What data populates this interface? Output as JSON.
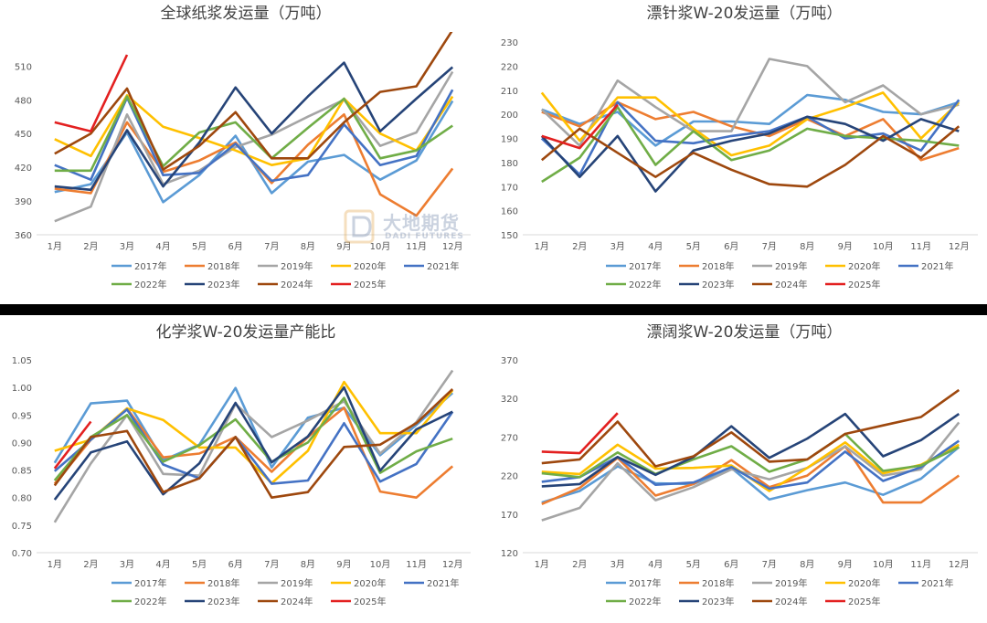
{
  "months": [
    "1月",
    "2月",
    "3月",
    "4月",
    "5月",
    "6月",
    "7月",
    "8月",
    "9月",
    "10月",
    "11月",
    "12月"
  ],
  "series_names": [
    "2017年",
    "2018年",
    "2019年",
    "2020年",
    "2021年",
    "2022年",
    "2023年",
    "2024年",
    "2025年"
  ],
  "series_colors": [
    "#5b9bd5",
    "#ed7d31",
    "#a5a5a5",
    "#ffc000",
    "#4472c4",
    "#70ad47",
    "#264478",
    "#9e480e",
    "#e32020"
  ],
  "watermark": {
    "cn": "大地期货",
    "en": "DADI FUTURES",
    "color": "#3b5b99"
  },
  "chart_data": [
    {
      "type": "line",
      "title": "全球纸浆发运量（万吨）",
      "ylim": [
        360,
        520
      ],
      "yticks": [
        "360",
        "390",
        "420",
        "450",
        "480",
        "510"
      ],
      "ytick_values": [
        360,
        390,
        420,
        450,
        480,
        510
      ],
      "x": [
        "1月",
        "2月",
        "3月",
        "4月",
        "5月",
        "6月",
        "7月",
        "8月",
        "9月",
        "10月",
        "11月",
        "12月"
      ],
      "series": [
        {
          "name": "2017年",
          "values": [
            398,
            405,
            451,
            389,
            413,
            448,
            397,
            425,
            431,
            409,
            426,
            479
          ]
        },
        {
          "name": "2018年",
          "values": [
            401,
            397,
            460,
            416,
            426,
            442,
            406,
            440,
            467,
            396,
            377,
            419
          ]
        },
        {
          "name": "2019年",
          "values": [
            372,
            385,
            467,
            405,
            417,
            438,
            449,
            465,
            480,
            439,
            451,
            505
          ]
        },
        {
          "name": "2020年",
          "values": [
            445,
            430,
            484,
            456,
            446,
            435,
            422,
            428,
            481,
            450,
            435,
            483
          ]
        },
        {
          "name": "2021年",
          "values": [
            422,
            409,
            482,
            413,
            415,
            441,
            408,
            413,
            458,
            422,
            430,
            489
          ]
        },
        {
          "name": "2022年",
          "values": [
            417,
            417,
            483,
            421,
            451,
            460,
            428,
            455,
            481,
            428,
            435,
            457
          ]
        },
        {
          "name": "2023年",
          "values": [
            403,
            400,
            453,
            403,
            442,
            491,
            450,
            483,
            513,
            452,
            481,
            509
          ]
        },
        {
          "name": "2024年",
          "values": [
            432,
            450,
            490,
            418,
            439,
            469,
            428,
            428,
            460,
            487,
            492,
            542
          ]
        },
        {
          "name": "2025年",
          "values": [
            460,
            452,
            520,
            null,
            null,
            null,
            null,
            null,
            null,
            null,
            null,
            null
          ]
        }
      ]
    },
    {
      "type": "line",
      "title": "漂针浆W-20发运量（万吨）",
      "ylim": [
        150,
        230
      ],
      "yticks": [
        "150",
        "160",
        "170",
        "180",
        "190",
        "200",
        "210",
        "220",
        "230"
      ],
      "ytick_values": [
        150,
        160,
        170,
        180,
        190,
        200,
        210,
        220,
        230
      ],
      "x": [
        "1月",
        "2月",
        "3月",
        "4月",
        "5月",
        "6月",
        "7月",
        "8月",
        "9月",
        "10月",
        "11月",
        "12月"
      ],
      "series": [
        {
          "name": "2017年",
          "values": [
            202,
            196,
            201,
            187,
            197,
            197,
            196,
            208,
            206,
            201,
            200,
            205
          ]
        },
        {
          "name": "2018年",
          "values": [
            201,
            195,
            205,
            198,
            201,
            195,
            191,
            198,
            191,
            198,
            181,
            186
          ]
        },
        {
          "name": "2019年",
          "values": [
            202,
            187,
            214,
            203,
            193,
            193,
            223,
            220,
            205,
            212,
            200,
            204
          ]
        },
        {
          "name": "2020年",
          "values": [
            209,
            189,
            207,
            207,
            194,
            183,
            187,
            198,
            203,
            209,
            190,
            205
          ]
        },
        {
          "name": "2021年",
          "values": [
            190,
            175,
            205,
            189,
            188,
            191,
            193,
            199,
            190,
            192,
            185,
            206
          ]
        },
        {
          "name": "2022年",
          "values": [
            172,
            182,
            203,
            179,
            193,
            181,
            185,
            194,
            191,
            190,
            189,
            187
          ]
        },
        {
          "name": "2023年",
          "values": [
            191,
            174,
            191,
            168,
            185,
            189,
            192,
            199,
            196,
            189,
            198,
            193
          ]
        },
        {
          "name": "2024年",
          "values": [
            181,
            194,
            184,
            174,
            184,
            177,
            171,
            170,
            179,
            191,
            182,
            195
          ]
        },
        {
          "name": "2025年",
          "values": [
            191,
            186,
            204,
            null,
            null,
            null,
            null,
            null,
            null,
            null,
            null,
            null
          ]
        }
      ]
    },
    {
      "type": "line",
      "title": "化学浆W-20发运量产能比",
      "ylim": [
        0.7,
        1.05
      ],
      "yticks": [
        "0.70",
        "0.75",
        "0.80",
        "0.85",
        "0.90",
        "0.95",
        "1.00",
        "1.05"
      ],
      "ytick_values": [
        0.7,
        0.75,
        0.8,
        0.85,
        0.9,
        0.95,
        1.0,
        1.05
      ],
      "x": [
        "1月",
        "2月",
        "3月",
        "4月",
        "5月",
        "6月",
        "7月",
        "8月",
        "9月",
        "10月",
        "11月",
        "12月"
      ],
      "series": [
        {
          "name": "2017年",
          "values": [
            0.863,
            0.971,
            0.976,
            0.868,
            0.896,
            0.999,
            0.855,
            0.945,
            0.963,
            0.877,
            0.932,
            0.99
          ]
        },
        {
          "name": "2018年",
          "values": [
            0.825,
            0.905,
            0.962,
            0.873,
            0.88,
            0.91,
            0.847,
            0.91,
            0.963,
            0.811,
            0.8,
            0.857
          ]
        },
        {
          "name": "2019年",
          "values": [
            0.755,
            0.862,
            0.95,
            0.843,
            0.84,
            0.97,
            0.91,
            0.94,
            0.975,
            0.88,
            0.937,
            1.031
          ]
        },
        {
          "name": "2020年",
          "values": [
            0.885,
            0.905,
            0.962,
            0.941,
            0.891,
            0.891,
            0.826,
            0.885,
            1.01,
            0.917,
            0.917,
            0.995
          ]
        },
        {
          "name": "2021年",
          "values": [
            0.848,
            0.905,
            0.96,
            0.86,
            0.835,
            0.91,
            0.825,
            0.831,
            0.935,
            0.829,
            0.861,
            0.956
          ]
        },
        {
          "name": "2022年",
          "values": [
            0.831,
            0.91,
            0.95,
            0.865,
            0.895,
            0.942,
            0.865,
            0.9,
            0.981,
            0.845,
            0.884,
            0.907
          ]
        },
        {
          "name": "2023年",
          "values": [
            0.796,
            0.882,
            0.902,
            0.806,
            0.862,
            0.972,
            0.864,
            0.911,
            1.0,
            0.849,
            0.924,
            0.956
          ]
        },
        {
          "name": "2024年",
          "values": [
            0.822,
            0.91,
            0.921,
            0.81,
            0.835,
            0.91,
            0.8,
            0.81,
            0.892,
            0.896,
            0.935,
            0.997
          ]
        },
        {
          "name": "2025年",
          "values": [
            0.853,
            0.938,
            null,
            null,
            null,
            null,
            null,
            null,
            null,
            null,
            null,
            null
          ]
        }
      ]
    },
    {
      "type": "line",
      "title": "漂阔浆W-20发运量（万吨）",
      "ylim": [
        120,
        370
      ],
      "yticks": [
        "120",
        "170",
        "220",
        "270",
        "320",
        "370"
      ],
      "ytick_values": [
        120,
        170,
        220,
        270,
        320,
        370
      ],
      "x": [
        "1月",
        "2月",
        "3月",
        "4月",
        "5月",
        "6月",
        "7月",
        "8月",
        "9月",
        "10月",
        "11月",
        "12月"
      ],
      "series": [
        {
          "name": "2017年",
          "values": [
            185,
            200,
            232,
            210,
            209,
            230,
            189,
            201,
            211,
            195,
            216,
            257
          ]
        },
        {
          "name": "2018年",
          "values": [
            183,
            204,
            243,
            194,
            209,
            240,
            205,
            220,
            258,
            185,
            185,
            220
          ]
        },
        {
          "name": "2019年",
          "values": [
            162,
            178,
            236,
            188,
            205,
            228,
            215,
            230,
            258,
            220,
            228,
            289
          ]
        },
        {
          "name": "2020年",
          "values": [
            225,
            222,
            260,
            229,
            230,
            233,
            200,
            230,
            263,
            223,
            234,
            260
          ]
        },
        {
          "name": "2021年",
          "values": [
            212,
            218,
            244,
            208,
            211,
            231,
            203,
            211,
            251,
            213,
            231,
            265
          ]
        },
        {
          "name": "2022年",
          "values": [
            223,
            218,
            250,
            222,
            241,
            258,
            225,
            241,
            274,
            226,
            233,
            257
          ]
        },
        {
          "name": "2023年",
          "values": [
            206,
            209,
            244,
            221,
            244,
            284,
            243,
            268,
            300,
            245,
            266,
            300
          ]
        },
        {
          "name": "2024年",
          "values": [
            236,
            241,
            290,
            232,
            245,
            276,
            238,
            241,
            274,
            285,
            296,
            331
          ]
        },
        {
          "name": "2025年",
          "values": [
            251,
            249,
            301,
            null,
            null,
            null,
            null,
            null,
            null,
            null,
            null,
            null
          ]
        }
      ]
    }
  ]
}
